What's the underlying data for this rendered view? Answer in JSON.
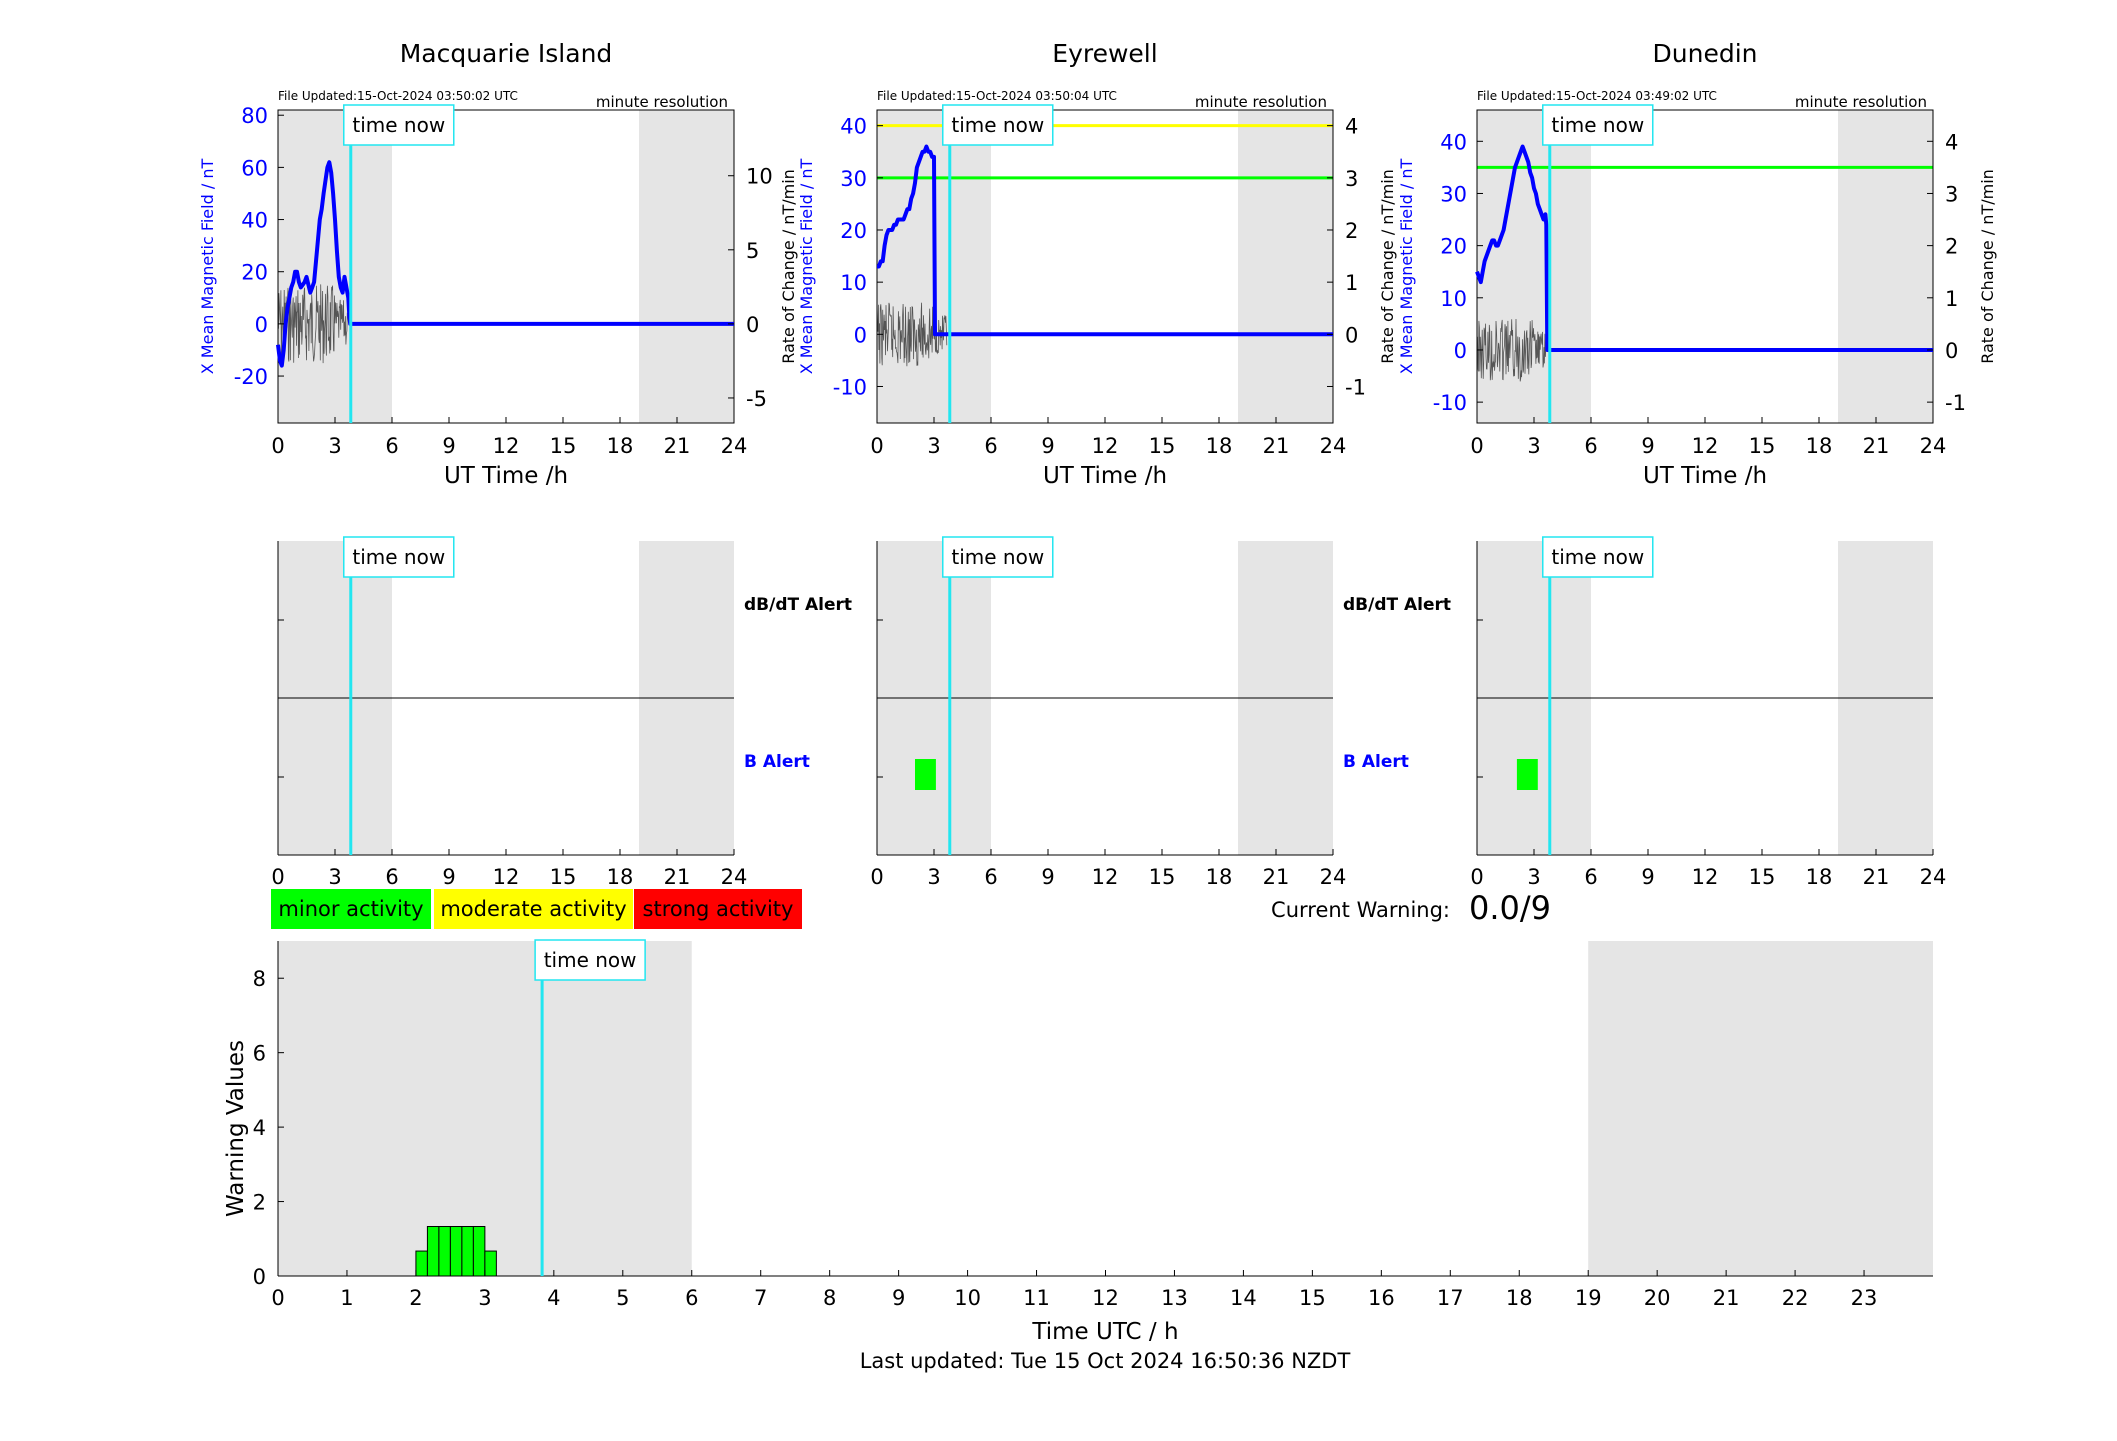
{
  "colors": {
    "blue": "#0000ff",
    "cyan": "#22e6f0",
    "green": "#00ff00",
    "yellow": "#ffff00",
    "red": "#ff0000",
    "shade": "#e5e5e5",
    "black": "#000000"
  },
  "common": {
    "time_now_label": "time now",
    "resolution_label": "minute resolution",
    "x_label": "UT Time /h",
    "y_left_label": "X Mean Magnetic Field / nT",
    "y_right_label": "Rate of Change / nT/min",
    "x_ticks": [
      0,
      3,
      6,
      9,
      12,
      15,
      18,
      21,
      24
    ],
    "dbdt_alert_label": "dB/dT Alert",
    "b_alert_label": "B Alert",
    "now_hour": 3.83,
    "night_shading": [
      [
        0,
        6
      ],
      [
        19,
        24
      ]
    ]
  },
  "legend": {
    "minor": "minor activity",
    "moderate": "moderate activity",
    "strong": "strong activity"
  },
  "current_warning": {
    "label": "Current Warning:",
    "value": "0.0/9"
  },
  "footer": {
    "last_updated": "Last updated: Tue 15 Oct 2024 16:50:36 NZDT"
  },
  "chart_data": [
    {
      "type": "line",
      "title": "Macquarie Island",
      "file_updated": "File Updated:15-Oct-2024 03:50:02 UTC",
      "xlabel": "UT Time /h",
      "ylabel": "X Mean Magnetic Field / nT",
      "y2label": "Rate of Change / nT/min",
      "xlim": [
        0,
        24
      ],
      "ylim": [
        -38,
        82
      ],
      "y_ticks": [
        -20,
        0,
        20,
        40,
        60,
        80
      ],
      "y2_ticks": [
        -5,
        0,
        5,
        10
      ],
      "y2_scale": 5.68,
      "series": [
        {
          "x": [
            0,
            0.1,
            0.2,
            0.3,
            0.4,
            0.5,
            0.6,
            0.7,
            0.8,
            0.9,
            1.0,
            1.1,
            1.2,
            1.3,
            1.4,
            1.5,
            1.6,
            1.7,
            1.8,
            1.9,
            2.0,
            2.1,
            2.2,
            2.3,
            2.4,
            2.5,
            2.6,
            2.7,
            2.8,
            2.9,
            3.0,
            3.1,
            3.2,
            3.3,
            3.4,
            3.5,
            3.6,
            3.7,
            3.75,
            3.8,
            24
          ],
          "values": [
            -8,
            -14,
            -16,
            -10,
            0,
            6,
            10,
            14,
            16,
            20,
            20,
            16,
            14,
            15,
            16,
            18,
            15,
            12,
            14,
            16,
            24,
            32,
            40,
            44,
            50,
            55,
            60,
            62,
            58,
            50,
            40,
            28,
            18,
            14,
            12,
            18,
            14,
            10,
            3,
            0,
            0
          ]
        }
      ],
      "dbdt_bars": [],
      "b_bars": []
    },
    {
      "type": "line",
      "title": "Eyrewell",
      "file_updated": "File Updated:15-Oct-2024 03:50:04 UTC",
      "xlabel": "UT Time /h",
      "ylabel": "X Mean Magnetic Field / nT",
      "y2label": "Rate of Change / nT/min",
      "xlim": [
        0,
        24
      ],
      "ylim": [
        -17,
        43
      ],
      "y_ticks": [
        -10,
        0,
        10,
        20,
        30,
        40
      ],
      "y2_ticks": [
        -1,
        0,
        1,
        2,
        3,
        4
      ],
      "y2_scale": 10,
      "thresholds": [
        {
          "value": 30,
          "color": "#00ff00"
        },
        {
          "value": 40,
          "color": "#ffff00"
        }
      ],
      "series": [
        {
          "x": [
            0,
            0.1,
            0.2,
            0.3,
            0.4,
            0.5,
            0.6,
            0.7,
            0.8,
            0.9,
            1.0,
            1.1,
            1.2,
            1.3,
            1.4,
            1.5,
            1.6,
            1.7,
            1.8,
            1.9,
            2.0,
            2.1,
            2.2,
            2.3,
            2.4,
            2.5,
            2.6,
            2.7,
            2.8,
            2.9,
            3.0,
            3.02,
            3.05,
            24
          ],
          "values": [
            13,
            13,
            14,
            14,
            17,
            19,
            20,
            20,
            20,
            21,
            21,
            22,
            22,
            22,
            22,
            23,
            24,
            24,
            26,
            27,
            29,
            32,
            33,
            34,
            35,
            35,
            36,
            35,
            35,
            34,
            34,
            20,
            0,
            0
          ]
        }
      ],
      "dbdt_bars": [],
      "b_bars": [
        {
          "from": 2.0,
          "to": 3.1,
          "level": "minor"
        }
      ]
    },
    {
      "type": "line",
      "title": "Dunedin",
      "file_updated": "File Updated:15-Oct-2024 03:49:02 UTC",
      "xlabel": "UT Time /h",
      "ylabel": "X Mean Magnetic Field / nT",
      "y2label": "Rate of Change / nT/min",
      "xlim": [
        0,
        24
      ],
      "ylim": [
        -14,
        46
      ],
      "y_ticks": [
        -10,
        0,
        10,
        20,
        30,
        40
      ],
      "y2_ticks": [
        -1,
        0,
        1,
        2,
        3,
        4
      ],
      "y2_scale": 10,
      "thresholds": [
        {
          "value": 35,
          "color": "#00ff00"
        }
      ],
      "series": [
        {
          "x": [
            0,
            0.1,
            0.2,
            0.3,
            0.4,
            0.5,
            0.6,
            0.7,
            0.8,
            0.9,
            1.0,
            1.1,
            1.2,
            1.3,
            1.4,
            1.5,
            1.6,
            1.7,
            1.8,
            1.9,
            2.0,
            2.1,
            2.2,
            2.3,
            2.4,
            2.5,
            2.6,
            2.7,
            2.8,
            2.9,
            3.0,
            3.1,
            3.2,
            3.3,
            3.4,
            3.5,
            3.6,
            3.65,
            3.7,
            24
          ],
          "values": [
            15,
            14,
            13,
            15,
            17,
            18,
            19,
            20,
            21,
            21,
            20,
            20,
            21,
            22,
            23,
            25,
            27,
            29,
            31,
            33,
            35,
            36,
            37,
            38,
            39,
            38,
            37,
            36,
            34,
            33,
            31,
            30,
            28,
            27,
            26,
            25,
            26,
            24,
            0,
            0
          ]
        }
      ],
      "dbdt_bars": [],
      "b_bars": [
        {
          "from": 2.1,
          "to": 3.2,
          "level": "minor"
        }
      ]
    },
    {
      "type": "bar",
      "title": "",
      "xlabel": "Time UTC / h",
      "ylabel": "Warning Values",
      "xlim": [
        0,
        24
      ],
      "ylim": [
        0,
        9
      ],
      "x_ticks": [
        0,
        1,
        2,
        3,
        4,
        5,
        6,
        7,
        8,
        9,
        10,
        11,
        12,
        13,
        14,
        15,
        16,
        17,
        18,
        19,
        20,
        21,
        22,
        23
      ],
      "y_ticks": [
        0,
        2,
        4,
        6,
        8
      ],
      "bar_width_h": 0.1667,
      "x": [
        2.0,
        2.1667,
        2.3333,
        2.5,
        2.6667,
        2.8333,
        3.0
      ],
      "values": [
        0.67,
        1.33,
        1.33,
        1.33,
        1.33,
        1.33,
        0.67
      ]
    }
  ]
}
